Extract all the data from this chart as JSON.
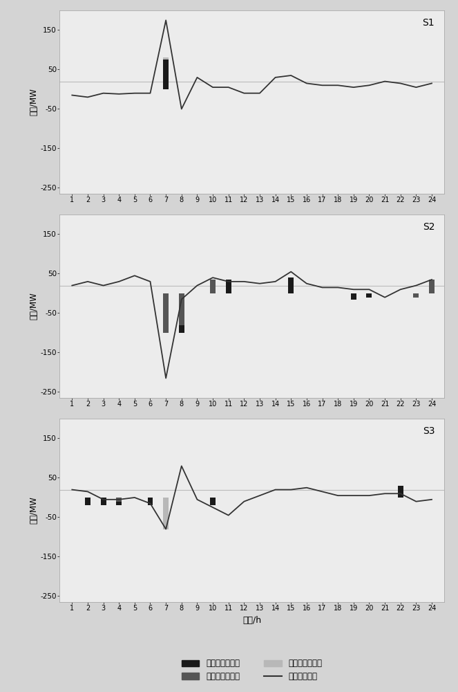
{
  "hours": [
    1,
    2,
    3,
    4,
    5,
    6,
    7,
    8,
    9,
    10,
    11,
    12,
    13,
    14,
    15,
    16,
    17,
    18,
    19,
    20,
    21,
    22,
    23,
    24
  ],
  "S1": {
    "industrial": [
      0,
      0,
      0,
      0,
      0,
      0,
      75,
      0,
      0,
      0,
      0,
      0,
      0,
      0,
      0,
      0,
      0,
      0,
      0,
      0,
      0,
      0,
      0,
      0
    ],
    "commercial": [
      0,
      0,
      0,
      0,
      0,
      0,
      0,
      0,
      0,
      0,
      0,
      0,
      0,
      0,
      0,
      0,
      0,
      0,
      0,
      0,
      0,
      0,
      0,
      0
    ],
    "residential": [
      0,
      0,
      0,
      0,
      0,
      0,
      80,
      0,
      0,
      0,
      0,
      0,
      0,
      0,
      0,
      0,
      0,
      0,
      0,
      0,
      0,
      0,
      0,
      0
    ],
    "wind_error": [
      -15,
      -20,
      -10,
      -12,
      -10,
      -10,
      175,
      -50,
      30,
      5,
      5,
      -10,
      -10,
      30,
      35,
      15,
      10,
      10,
      5,
      10,
      20,
      15,
      5,
      15
    ]
  },
  "S2": {
    "industrial": [
      0,
      0,
      0,
      0,
      0,
      0,
      -100,
      -100,
      0,
      0,
      35,
      0,
      0,
      0,
      40,
      0,
      0,
      0,
      -15,
      -10,
      0,
      0,
      0,
      0
    ],
    "commercial": [
      0,
      0,
      0,
      0,
      0,
      0,
      -100,
      -80,
      0,
      35,
      0,
      0,
      0,
      0,
      0,
      0,
      0,
      0,
      0,
      0,
      0,
      0,
      -10,
      35
    ],
    "residential": [
      0,
      0,
      0,
      0,
      0,
      0,
      -15,
      -30,
      0,
      0,
      0,
      0,
      0,
      0,
      0,
      0,
      0,
      0,
      0,
      0,
      0,
      0,
      0,
      0
    ],
    "wind_error": [
      20,
      30,
      20,
      30,
      45,
      30,
      -215,
      -15,
      20,
      40,
      30,
      30,
      25,
      30,
      55,
      25,
      15,
      15,
      10,
      10,
      -10,
      10,
      20,
      35
    ]
  },
  "S3": {
    "industrial": [
      0,
      -20,
      -20,
      -20,
      0,
      -20,
      0,
      0,
      0,
      -20,
      0,
      0,
      0,
      0,
      0,
      0,
      0,
      0,
      0,
      0,
      0,
      30,
      0,
      0
    ],
    "commercial": [
      0,
      0,
      0,
      -10,
      0,
      0,
      0,
      0,
      0,
      0,
      0,
      0,
      0,
      0,
      0,
      0,
      0,
      0,
      0,
      0,
      0,
      0,
      0,
      0
    ],
    "residential": [
      0,
      0,
      0,
      0,
      0,
      0,
      -80,
      0,
      0,
      0,
      0,
      0,
      0,
      0,
      0,
      0,
      0,
      0,
      0,
      0,
      0,
      5,
      0,
      0
    ],
    "wind_error": [
      20,
      15,
      -5,
      -5,
      0,
      -15,
      -80,
      80,
      -5,
      -25,
      -45,
      -10,
      5,
      20,
      20,
      25,
      15,
      5,
      5,
      5,
      10,
      10,
      -10,
      -5
    ]
  },
  "ylim": [
    -265,
    200
  ],
  "yticks": [
    -250,
    -150,
    -50,
    50,
    150
  ],
  "ylabel": "功率/MW",
  "xlabel": "时间/h",
  "fig_facecolor": "#d4d4d4",
  "plot_facecolor": "#ececec",
  "industrial_color": "#1a1a1a",
  "commercial_color": "#555555",
  "residential_color": "#b8b8b8",
  "wind_color": "#333333",
  "ref_line_color": "#bbbbbb",
  "legend_labels": [
    "工业用户响应量",
    "商业用户响应量",
    "居民用户响应量",
    "风电误差终值"
  ]
}
